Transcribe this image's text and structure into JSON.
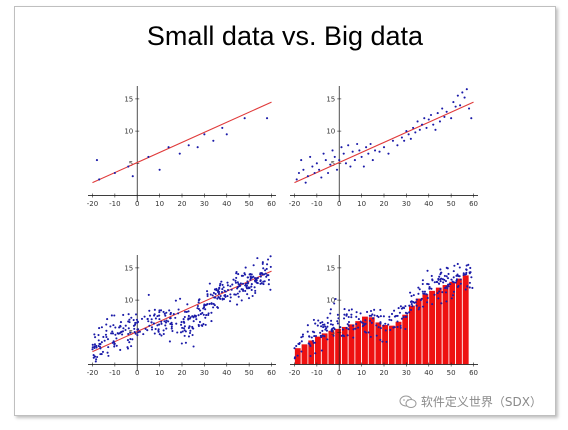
{
  "slide": {
    "title": "Small data vs. Big data",
    "watermark": "软件定义世界（SDX）"
  },
  "colors": {
    "point": "#1a1aa8",
    "fit_line": "#e03a3a",
    "bar_fill": "#ee1111",
    "bar_edge": "#ffffff",
    "axis": "#222222"
  },
  "chart_data": [
    {
      "type": "scatter",
      "title": "",
      "xlabel": "",
      "ylabel": "",
      "xlim": [
        -22,
        62
      ],
      "ylim": [
        -1,
        17
      ],
      "xticks": [
        "-20",
        "-10",
        "0",
        "10",
        "20",
        "30",
        "40",
        "50",
        "60"
      ],
      "yticks": [
        "5",
        "10",
        "15"
      ],
      "fit_line": {
        "x": [
          -20,
          60
        ],
        "y": [
          2.0,
          14.5
        ]
      },
      "points": [
        [
          -18,
          5.5
        ],
        [
          -17,
          2.5
        ],
        [
          -10,
          3.5
        ],
        [
          -4,
          4.5
        ],
        [
          -2,
          3.0
        ],
        [
          5,
          6.0
        ],
        [
          10,
          4.0
        ],
        [
          14,
          7.5
        ],
        [
          19,
          6.5
        ],
        [
          23,
          7.8
        ],
        [
          27,
          7.5
        ],
        [
          30,
          9.5
        ],
        [
          34,
          8.5
        ],
        [
          38,
          10.5
        ],
        [
          40,
          9.5
        ],
        [
          48,
          12.0
        ],
        [
          58,
          12.0
        ]
      ]
    },
    {
      "type": "scatter",
      "title": "",
      "xlabel": "",
      "ylabel": "",
      "xlim": [
        -22,
        62
      ],
      "ylim": [
        -1,
        17
      ],
      "xticks": [
        "-20",
        "-10",
        "0",
        "10",
        "20",
        "30",
        "40",
        "50",
        "60"
      ],
      "yticks": [
        "5",
        "10",
        "15"
      ],
      "fit_line": {
        "x": [
          -20,
          60
        ],
        "y": [
          2.0,
          14.5
        ]
      },
      "points": [
        [
          -19,
          2.5
        ],
        [
          -18,
          3.5
        ],
        [
          -17,
          5.5
        ],
        [
          -16,
          4.0
        ],
        [
          -15,
          2.0
        ],
        [
          -14,
          3.0
        ],
        [
          -13,
          6.0
        ],
        [
          -12,
          4.5
        ],
        [
          -11,
          3.5
        ],
        [
          -10,
          5.0
        ],
        [
          -9,
          4.0
        ],
        [
          -8,
          2.8
        ],
        [
          -7,
          6.5
        ],
        [
          -6,
          5.5
        ],
        [
          -5,
          3.5
        ],
        [
          -4,
          4.8
        ],
        [
          -3,
          7.0
        ],
        [
          -2,
          6.0
        ],
        [
          -1,
          4.0
        ],
        [
          0,
          5.5
        ],
        [
          1,
          7.5
        ],
        [
          2,
          6.5
        ],
        [
          3,
          5.0
        ],
        [
          4,
          7.8
        ],
        [
          5,
          4.5
        ],
        [
          6,
          6.8
        ],
        [
          7,
          5.5
        ],
        [
          8,
          8.0
        ],
        [
          9,
          7.0
        ],
        [
          10,
          6.0
        ],
        [
          11,
          4.5
        ],
        [
          12,
          7.5
        ],
        [
          13,
          6.5
        ],
        [
          14,
          8.0
        ],
        [
          15,
          5.5
        ],
        [
          16,
          7.0
        ],
        [
          18,
          6.8
        ],
        [
          20,
          7.5
        ],
        [
          22,
          6.5
        ],
        [
          24,
          8.5
        ],
        [
          26,
          7.8
        ],
        [
          28,
          9.0
        ],
        [
          29,
          8.5
        ],
        [
          30,
          10.0
        ],
        [
          31,
          9.5
        ],
        [
          32,
          8.8
        ],
        [
          33,
          10.5
        ],
        [
          34,
          9.8
        ],
        [
          35,
          11.5
        ],
        [
          36,
          10.2
        ],
        [
          37,
          11.0
        ],
        [
          38,
          12.0
        ],
        [
          39,
          10.5
        ],
        [
          40,
          11.8
        ],
        [
          41,
          12.5
        ],
        [
          42,
          11.0
        ],
        [
          43,
          10.2
        ],
        [
          44,
          12.8
        ],
        [
          45,
          11.5
        ],
        [
          46,
          13.5
        ],
        [
          47,
          12.2
        ],
        [
          48,
          13.0
        ],
        [
          50,
          12.0
        ],
        [
          51,
          14.5
        ],
        [
          52,
          13.8
        ],
        [
          53,
          15.5
        ],
        [
          54,
          14.0
        ],
        [
          55,
          16.0
        ],
        [
          56,
          15.2
        ],
        [
          57,
          16.5
        ],
        [
          58,
          13.5
        ],
        [
          59,
          12.0
        ]
      ]
    },
    {
      "type": "scatter",
      "title": "",
      "xlabel": "",
      "ylabel": "",
      "xlim": [
        -22,
        62
      ],
      "ylim": [
        -1,
        17
      ],
      "xticks": [
        "-20",
        "-10",
        "0",
        "10",
        "20",
        "30",
        "40",
        "50",
        "60"
      ],
      "yticks": [
        "5",
        "10",
        "15"
      ],
      "fit_line": {
        "x": [
          -20,
          60
        ],
        "y": [
          2.0,
          14.5
        ]
      },
      "trend": [
        [
          -20,
          2.5
        ],
        [
          -15,
          4.0
        ],
        [
          -10,
          5.0
        ],
        [
          -5,
          5.8
        ],
        [
          0,
          6.2
        ],
        [
          5,
          6.5
        ],
        [
          10,
          6.6
        ],
        [
          15,
          6.5
        ],
        [
          20,
          6.4
        ],
        [
          25,
          6.8
        ],
        [
          28,
          7.5
        ],
        [
          31,
          8.8
        ],
        [
          34,
          10.0
        ],
        [
          37,
          11.0
        ],
        [
          40,
          11.5
        ],
        [
          45,
          12.0
        ],
        [
          50,
          12.8
        ],
        [
          55,
          13.5
        ],
        [
          60,
          14.2
        ]
      ],
      "spread": 1.3,
      "n_points": 420
    },
    {
      "type": "bar",
      "title": "",
      "xlabel": "",
      "ylabel": "",
      "xlim": [
        -22,
        62
      ],
      "ylim": [
        -1,
        17
      ],
      "xticks": [
        "-20",
        "-10",
        "0",
        "10",
        "20",
        "30",
        "40",
        "50",
        "60"
      ],
      "yticks": [
        "5",
        "10",
        "15"
      ],
      "bin_width": 3,
      "bar_edges": [
        -20,
        -17,
        -14,
        -11,
        -8,
        -5,
        -2,
        1,
        4,
        7,
        10,
        13,
        16,
        19,
        22,
        25,
        28,
        31,
        34,
        37,
        40,
        43,
        46,
        49,
        52,
        55,
        58
      ],
      "values": [
        2.6,
        3.2,
        3.8,
        4.4,
        4.9,
        5.3,
        5.6,
        5.9,
        6.3,
        6.8,
        7.5,
        7.4,
        6.6,
        6.2,
        6.1,
        6.7,
        7.8,
        9.2,
        10.3,
        11.0,
        11.5,
        12.0,
        12.4,
        12.9,
        13.4,
        13.9
      ],
      "trend": [
        [
          -20,
          2.5
        ],
        [
          -15,
          4.0
        ],
        [
          -10,
          5.0
        ],
        [
          -5,
          5.8
        ],
        [
          0,
          6.2
        ],
        [
          5,
          6.5
        ],
        [
          10,
          6.6
        ],
        [
          15,
          6.5
        ],
        [
          20,
          6.4
        ],
        [
          25,
          6.8
        ],
        [
          28,
          7.5
        ],
        [
          31,
          8.8
        ],
        [
          34,
          10.0
        ],
        [
          37,
          11.0
        ],
        [
          40,
          11.5
        ],
        [
          45,
          12.0
        ],
        [
          50,
          12.8
        ],
        [
          55,
          13.5
        ],
        [
          60,
          14.2
        ]
      ],
      "spread": 1.3,
      "n_points": 300
    }
  ]
}
